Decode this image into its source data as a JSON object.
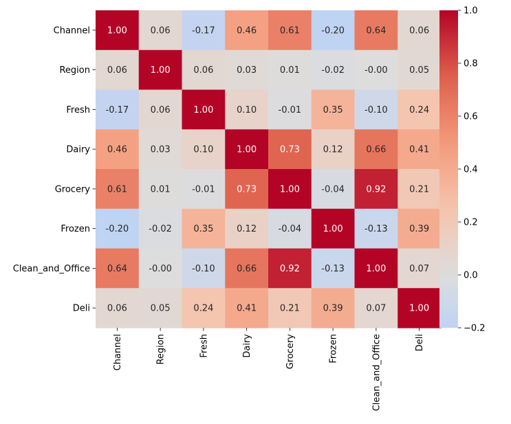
{
  "chart_data": {
    "type": "heatmap",
    "title": "",
    "xlabel": "",
    "ylabel": "",
    "x_categories": [
      "Channel",
      "Region",
      "Fresh",
      "Dairy",
      "Grocery",
      "Frozen",
      "Clean_and_Office",
      "Deli"
    ],
    "y_categories": [
      "Channel",
      "Region",
      "Fresh",
      "Dairy",
      "Grocery",
      "Frozen",
      "Clean_and_Office",
      "Deli"
    ],
    "values": [
      [
        1.0,
        0.06,
        -0.17,
        0.46,
        0.61,
        -0.2,
        0.64,
        0.06
      ],
      [
        0.06,
        1.0,
        0.06,
        0.03,
        0.01,
        -0.02,
        -0.0,
        0.05
      ],
      [
        -0.17,
        0.06,
        1.0,
        0.1,
        -0.01,
        0.35,
        -0.1,
        0.24
      ],
      [
        0.46,
        0.03,
        0.1,
        1.0,
        0.73,
        0.12,
        0.66,
        0.41
      ],
      [
        0.61,
        0.01,
        -0.01,
        0.73,
        1.0,
        -0.04,
        0.92,
        0.21
      ],
      [
        -0.2,
        -0.02,
        0.35,
        0.12,
        -0.04,
        1.0,
        -0.13,
        0.39
      ],
      [
        0.64,
        -0.0,
        -0.1,
        0.66,
        0.92,
        -0.13,
        1.0,
        0.07
      ],
      [
        0.06,
        0.05,
        0.24,
        0.41,
        0.21,
        0.39,
        0.07,
        1.0
      ]
    ],
    "annotation_format": "2 decimals",
    "colormap": "coolwarm",
    "colorbar": {
      "vmin": -0.2,
      "vmax": 1.0,
      "center": 0.0,
      "ticks": [
        -0.2,
        0.0,
        0.2,
        0.4,
        0.6,
        0.8,
        1.0
      ],
      "tick_labels": [
        "−0.2",
        "0.0",
        "0.2",
        "0.4",
        "0.6",
        "0.8",
        "1.0"
      ],
      "placement": "right"
    },
    "grid": false
  }
}
